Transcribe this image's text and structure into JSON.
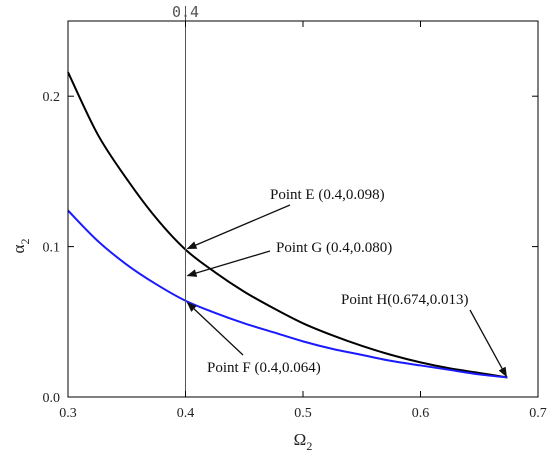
{
  "chart_data": {
    "type": "line",
    "title": "",
    "xlabel": "Ω",
    "xlabel_sub": "2",
    "ylabel": "α",
    "ylabel_sub": "2",
    "xlim": [
      0.3,
      0.7
    ],
    "ylim": [
      0.0,
      0.25
    ],
    "xticks": [
      {
        "v": 0.3,
        "label": "0.3"
      },
      {
        "v": 0.4,
        "label": "0.4"
      },
      {
        "v": 0.5,
        "label": "0.5"
      },
      {
        "v": 0.6,
        "label": "0.6"
      },
      {
        "v": 0.7,
        "label": "0.7"
      }
    ],
    "yticks": [
      {
        "v": 0.0,
        "label": "0.0"
      },
      {
        "v": 0.1,
        "label": "0.1"
      },
      {
        "v": 0.2,
        "label": "0.2"
      }
    ],
    "grid": false,
    "series": [
      {
        "color": "#000000",
        "x": [
          0.3,
          0.325,
          0.35,
          0.375,
          0.4,
          0.425,
          0.45,
          0.475,
          0.5,
          0.525,
          0.55,
          0.575,
          0.6,
          0.625,
          0.65,
          0.674
        ],
        "y": [
          0.216,
          0.175,
          0.145,
          0.119,
          0.098,
          0.083,
          0.07,
          0.059,
          0.049,
          0.041,
          0.034,
          0.028,
          0.023,
          0.019,
          0.016,
          0.013
        ]
      },
      {
        "color": "#1a1aff",
        "x": [
          0.3,
          0.325,
          0.35,
          0.375,
          0.4,
          0.425,
          0.45,
          0.475,
          0.5,
          0.525,
          0.55,
          0.575,
          0.6,
          0.625,
          0.65,
          0.674
        ],
        "y": [
          0.124,
          0.104,
          0.088,
          0.075,
          0.064,
          0.056,
          0.049,
          0.043,
          0.037,
          0.032,
          0.028,
          0.024,
          0.021,
          0.018,
          0.015,
          0.013
        ]
      }
    ],
    "vline": {
      "x": 0.4,
      "label": "0.4",
      "color": "#555555"
    },
    "annotations": [
      {
        "text": "Point E (0.4,0.098)",
        "px": 0.4,
        "py": 0.098,
        "side": "right-up"
      },
      {
        "text": "Point G (0.4,0.080)",
        "px": 0.4,
        "py": 0.08,
        "side": "right-up"
      },
      {
        "text": "Point F (0.4,0.064)",
        "px": 0.4,
        "py": 0.064,
        "side": "right-down"
      },
      {
        "text": "Point H(0.674,0.013)",
        "px": 0.674,
        "py": 0.013,
        "side": "left-up"
      }
    ]
  }
}
